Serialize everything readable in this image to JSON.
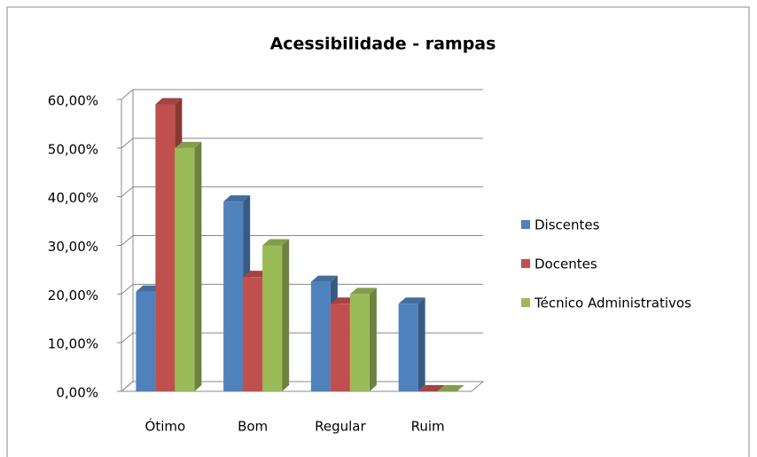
{
  "chart_data": {
    "type": "bar3d",
    "title": "Acessibilidade - rampas",
    "categories": [
      "Ótimo",
      "Bom",
      "Regular",
      "Ruim"
    ],
    "series": [
      {
        "name": "Discentes",
        "color": "#4f81bd",
        "values": [
          20.5,
          39,
          22.5,
          18
        ]
      },
      {
        "name": "Docentes",
        "color": "#c0504d",
        "values": [
          59,
          23.5,
          18,
          0
        ]
      },
      {
        "name": "Técnico Administrativos",
        "color": "#9bbb59",
        "values": [
          50,
          30,
          20,
          0
        ]
      }
    ],
    "ylim": [
      0,
      60
    ],
    "yticks": [
      {
        "value": 0,
        "label": "0,00%"
      },
      {
        "value": 10,
        "label": "10,00%"
      },
      {
        "value": 20,
        "label": "20,00%"
      },
      {
        "value": 30,
        "label": "30,00%"
      },
      {
        "value": 40,
        "label": "40,00%"
      },
      {
        "value": 50,
        "label": "50,00%"
      },
      {
        "value": 60,
        "label": "60,00%"
      }
    ],
    "grid": true,
    "legend": "right"
  }
}
